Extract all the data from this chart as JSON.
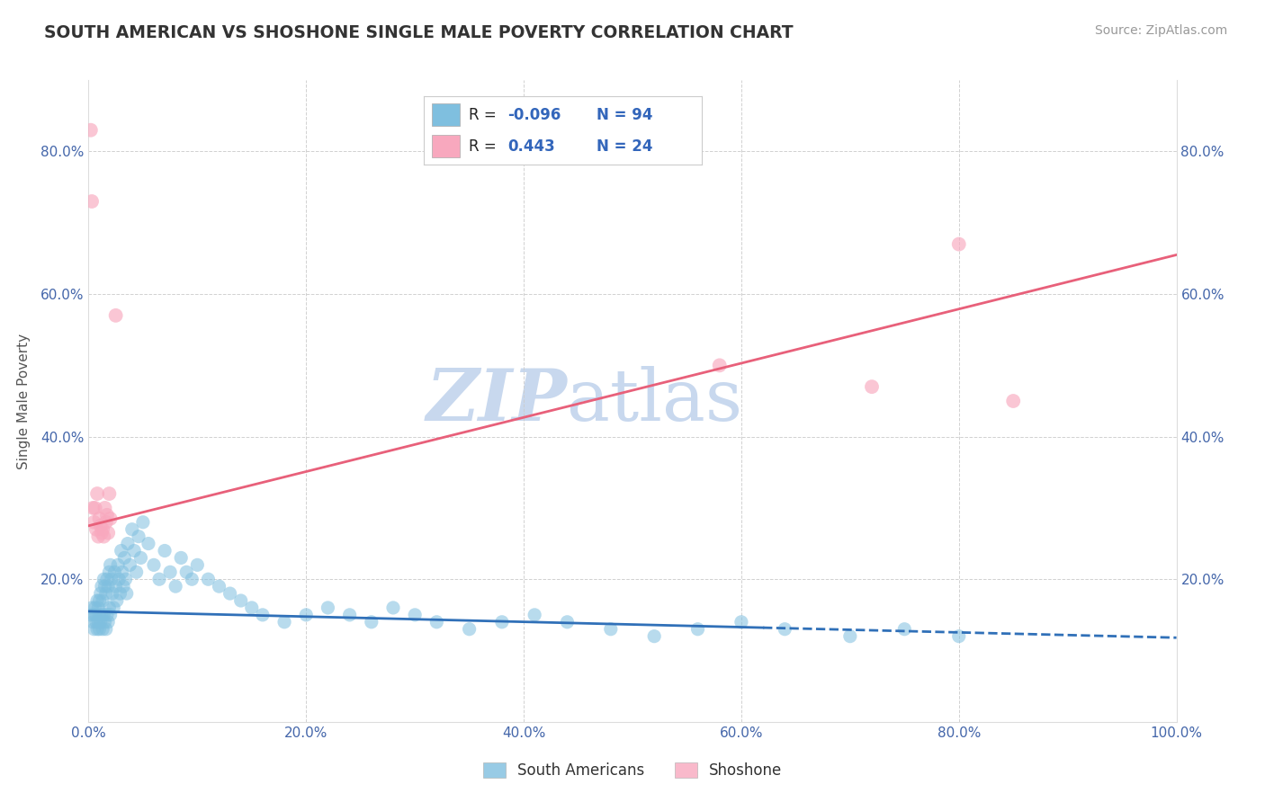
{
  "title": "SOUTH AMERICAN VS SHOSHONE SINGLE MALE POVERTY CORRELATION CHART",
  "source": "Source: ZipAtlas.com",
  "ylabel": "Single Male Poverty",
  "xlim": [
    0.0,
    1.0
  ],
  "ylim": [
    0.0,
    0.9
  ],
  "yticks": [
    0.0,
    0.2,
    0.4,
    0.6,
    0.8
  ],
  "ytick_labels_left": [
    "",
    "20.0%",
    "40.0%",
    "60.0%",
    "80.0%"
  ],
  "ytick_labels_right": [
    "",
    "20.0%",
    "40.0%",
    "60.0%",
    "80.0%"
  ],
  "xtick_labels": [
    "0.0%",
    "20.0%",
    "40.0%",
    "60.0%",
    "80.0%",
    "100.0%"
  ],
  "xticks": [
    0.0,
    0.2,
    0.4,
    0.6,
    0.8,
    1.0
  ],
  "south_american_color": "#7fbfdf",
  "shoshone_color": "#f8a8be",
  "south_american_R": -0.096,
  "south_american_N": 94,
  "shoshone_R": 0.443,
  "shoshone_N": 24,
  "south_american_trend_color": "#3070b8",
  "shoshone_trend_color": "#e8607a",
  "background_color": "#ffffff",
  "grid_color": "#cccccc",
  "title_color": "#333333",
  "axis_color": "#4466aa",
  "legend_text_color": "#3366bb",
  "legend_R_label_color": "#222222",
  "watermark_color": "#c8d8ee",
  "watermark": "ZIPatlas",
  "sa_trend_solid_end": 0.62,
  "sa_trend_y0": 0.155,
  "sa_trend_y1": 0.118,
  "sh_trend_y0": 0.275,
  "sh_trend_y1": 0.655,
  "south_american_x": [
    0.002,
    0.003,
    0.004,
    0.005,
    0.005,
    0.006,
    0.007,
    0.007,
    0.008,
    0.008,
    0.009,
    0.009,
    0.01,
    0.01,
    0.01,
    0.011,
    0.011,
    0.012,
    0.012,
    0.013,
    0.013,
    0.014,
    0.014,
    0.015,
    0.015,
    0.016,
    0.016,
    0.017,
    0.017,
    0.018,
    0.018,
    0.019,
    0.019,
    0.02,
    0.02,
    0.021,
    0.022,
    0.023,
    0.024,
    0.025,
    0.026,
    0.027,
    0.028,
    0.029,
    0.03,
    0.031,
    0.032,
    0.033,
    0.034,
    0.035,
    0.036,
    0.038,
    0.04,
    0.042,
    0.044,
    0.046,
    0.048,
    0.05,
    0.055,
    0.06,
    0.065,
    0.07,
    0.075,
    0.08,
    0.085,
    0.09,
    0.095,
    0.1,
    0.11,
    0.12,
    0.13,
    0.14,
    0.15,
    0.16,
    0.18,
    0.2,
    0.22,
    0.24,
    0.26,
    0.28,
    0.3,
    0.32,
    0.35,
    0.38,
    0.41,
    0.44,
    0.48,
    0.52,
    0.56,
    0.6,
    0.64,
    0.7,
    0.75,
    0.8
  ],
  "south_american_y": [
    0.15,
    0.16,
    0.14,
    0.15,
    0.13,
    0.16,
    0.14,
    0.15,
    0.17,
    0.13,
    0.16,
    0.14,
    0.17,
    0.15,
    0.13,
    0.18,
    0.14,
    0.19,
    0.15,
    0.17,
    0.13,
    0.2,
    0.15,
    0.19,
    0.14,
    0.18,
    0.13,
    0.2,
    0.15,
    0.19,
    0.14,
    0.21,
    0.16,
    0.22,
    0.15,
    0.2,
    0.18,
    0.16,
    0.21,
    0.19,
    0.17,
    0.22,
    0.2,
    0.18,
    0.24,
    0.21,
    0.19,
    0.23,
    0.2,
    0.18,
    0.25,
    0.22,
    0.27,
    0.24,
    0.21,
    0.26,
    0.23,
    0.28,
    0.25,
    0.22,
    0.2,
    0.24,
    0.21,
    0.19,
    0.23,
    0.21,
    0.2,
    0.22,
    0.2,
    0.19,
    0.18,
    0.17,
    0.16,
    0.15,
    0.14,
    0.15,
    0.16,
    0.15,
    0.14,
    0.16,
    0.15,
    0.14,
    0.13,
    0.14,
    0.15,
    0.14,
    0.13,
    0.12,
    0.13,
    0.14,
    0.13,
    0.12,
    0.13,
    0.12
  ],
  "shoshone_x": [
    0.002,
    0.003,
    0.004,
    0.005,
    0.006,
    0.007,
    0.008,
    0.009,
    0.01,
    0.011,
    0.012,
    0.013,
    0.014,
    0.015,
    0.016,
    0.017,
    0.018,
    0.019,
    0.02,
    0.025,
    0.58,
    0.72,
    0.8,
    0.85
  ],
  "shoshone_y": [
    0.83,
    0.73,
    0.3,
    0.28,
    0.3,
    0.27,
    0.32,
    0.26,
    0.285,
    0.275,
    0.265,
    0.27,
    0.26,
    0.3,
    0.28,
    0.29,
    0.265,
    0.32,
    0.285,
    0.57,
    0.5,
    0.47,
    0.67,
    0.45
  ]
}
